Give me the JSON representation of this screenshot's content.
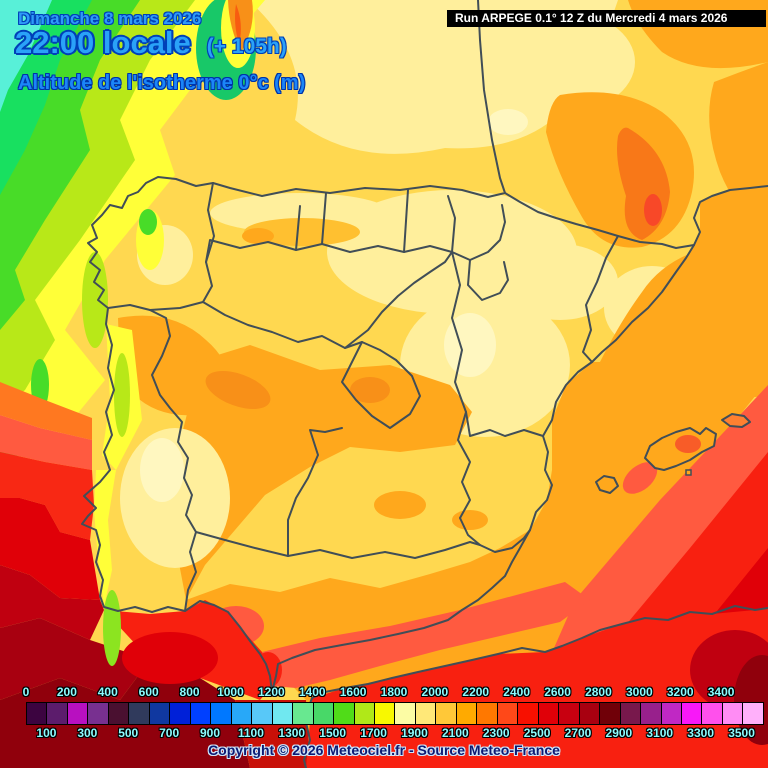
{
  "header": {
    "date_line": "Dimanche 8 mars 2026",
    "time_line": "22:00 locale",
    "time_offset": "(+ 105h)",
    "subtitle": "Altitude de l'isotherme 0°c (m)"
  },
  "run_bar": {
    "text": "Run ARPEGE 0.1° 12 Z du Mercredi 4 mars 2026"
  },
  "legend": {
    "top_labels": [
      "0",
      "200",
      "400",
      "600",
      "800",
      "1000",
      "1200",
      "1400",
      "1600",
      "1800",
      "2000",
      "2200",
      "2400",
      "2600",
      "2800",
      "3000",
      "3200",
      "3400"
    ],
    "bottom_labels": [
      "100",
      "300",
      "500",
      "700",
      "900",
      "1100",
      "1300",
      "1500",
      "1700",
      "1900",
      "2100",
      "2300",
      "2500",
      "2700",
      "2900",
      "3100",
      "3300",
      "3500"
    ],
    "swatch_colors": [
      "#3c0440",
      "#5c1c6c",
      "#b810c0",
      "#783090",
      "#4a1030",
      "#303a5c",
      "#1038a0",
      "#0020d8",
      "#0040ff",
      "#0078ff",
      "#28a8f8",
      "#58c8f8",
      "#70e8f0",
      "#68e890",
      "#48d868",
      "#50dc18",
      "#b0e818",
      "#f8f800",
      "#fcfca4",
      "#ffe878",
      "#ffc838",
      "#ffaa00",
      "#ff7800",
      "#ff4818",
      "#f81000",
      "#e00008",
      "#c80010",
      "#a80010",
      "#700008",
      "#78184c",
      "#98208c",
      "#c028c4",
      "#f818f8",
      "#ff50ec",
      "#ff8cf4",
      "#ffb0fa"
    ]
  },
  "footer": {
    "copyright": "Copyright © 2026 Meteociel.fr - Source Meteo-France"
  },
  "colors": {
    "header_text": "#2e9bf8",
    "header_outline": "#0040b8",
    "legend_label_text": "#8cfcff",
    "run_bar_bg": "#000000",
    "run_bar_text": "#ffffff",
    "copyright_text": "#0c1a74",
    "border_line": "#414e57",
    "base_land": "#ffd850"
  }
}
